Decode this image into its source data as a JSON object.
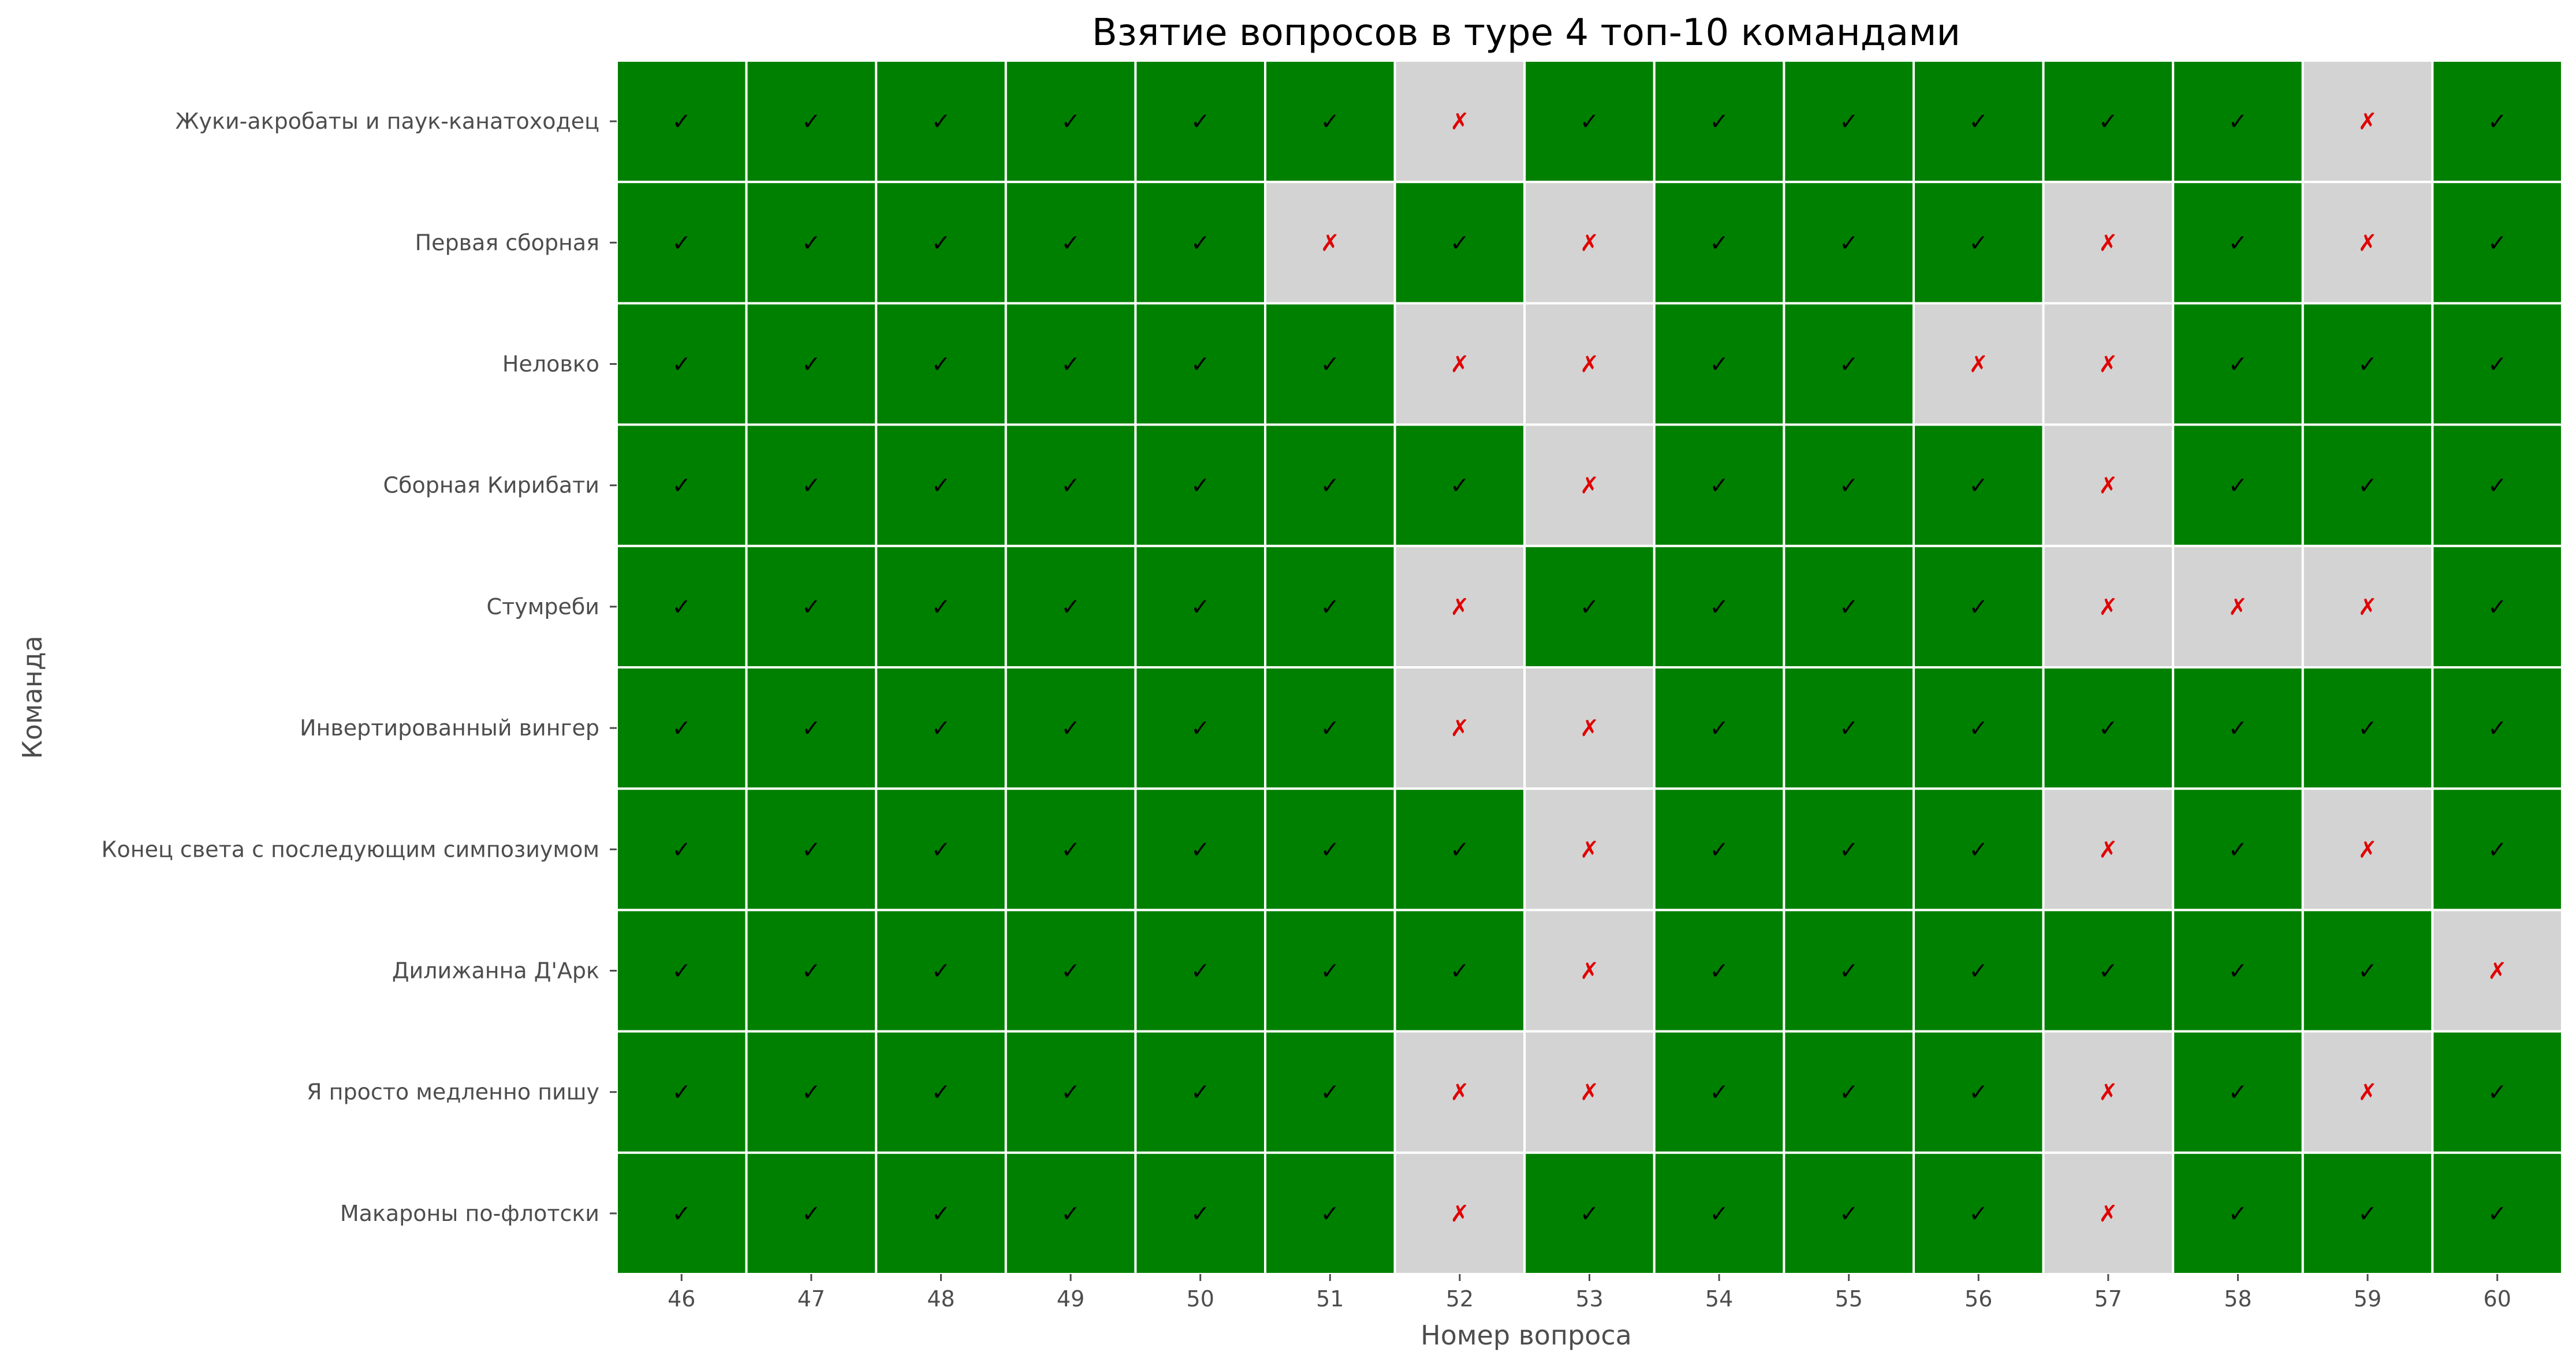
{
  "chart_data": {
    "type": "heatmap",
    "title": "Взятие вопросов в туре 4 топ-10 командами",
    "xlabel": "Номер вопроса",
    "ylabel": "Команда",
    "x": [
      "46",
      "47",
      "48",
      "49",
      "50",
      "51",
      "52",
      "53",
      "54",
      "55",
      "56",
      "57",
      "58",
      "59",
      "60"
    ],
    "y": [
      "Жуки-акробаты и паук-канатоходец",
      "Первая сборная",
      "Неловко",
      "Сборная Кирибати",
      "Стумреби",
      "Инвертированный вингер ",
      "Конец света с последующим симпозиумом",
      "Дилижанна Д'Арк",
      "Я просто медленно пишу",
      "Макароны по-флотски"
    ],
    "values": [
      [
        1,
        1,
        1,
        1,
        1,
        1,
        0,
        1,
        1,
        1,
        1,
        1,
        1,
        0,
        1
      ],
      [
        1,
        1,
        1,
        1,
        1,
        0,
        1,
        0,
        1,
        1,
        1,
        0,
        1,
        0,
        1
      ],
      [
        1,
        1,
        1,
        1,
        1,
        1,
        0,
        0,
        1,
        1,
        0,
        0,
        1,
        1,
        1
      ],
      [
        1,
        1,
        1,
        1,
        1,
        1,
        1,
        0,
        1,
        1,
        1,
        0,
        1,
        1,
        1
      ],
      [
        1,
        1,
        1,
        1,
        1,
        1,
        0,
        1,
        1,
        1,
        1,
        0,
        0,
        0,
        1
      ],
      [
        1,
        1,
        1,
        1,
        1,
        1,
        0,
        0,
        1,
        1,
        1,
        1,
        1,
        1,
        1
      ],
      [
        1,
        1,
        1,
        1,
        1,
        1,
        1,
        0,
        1,
        1,
        1,
        0,
        1,
        0,
        1
      ],
      [
        1,
        1,
        1,
        1,
        1,
        1,
        1,
        0,
        1,
        1,
        1,
        1,
        1,
        1,
        0
      ],
      [
        1,
        1,
        1,
        1,
        1,
        1,
        0,
        0,
        1,
        1,
        1,
        0,
        1,
        0,
        1
      ],
      [
        1,
        1,
        1,
        1,
        1,
        1,
        0,
        1,
        1,
        1,
        1,
        0,
        1,
        1,
        1
      ]
    ],
    "symbols": {
      "taken": "✓",
      "missed": "✗"
    },
    "colors": {
      "taken": "#008000",
      "missed": "#d3d3d3",
      "taken_mark": "#000000",
      "missed_mark": "#e00000",
      "grid": "#ffffff"
    }
  }
}
